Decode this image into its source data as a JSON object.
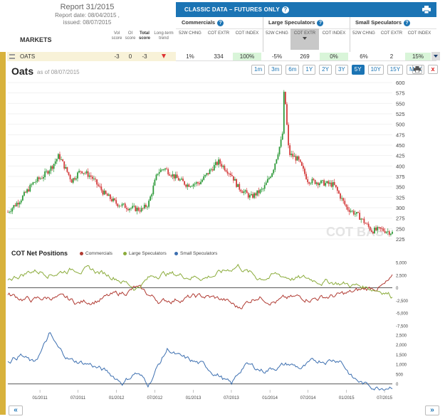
{
  "report": {
    "title": "Report 31/2015",
    "report_date": "Report date: 08/04/2015 ,",
    "issued": "issued: 08/07/2015"
  },
  "markets_label": "MARKETS",
  "score_headers": {
    "vol": "Vol score",
    "oi": "OI score",
    "total": "Total score",
    "trend": "Long-term trend"
  },
  "classic": {
    "title": "CLASSIC DATA – FUTURES ONLY",
    "help": "?"
  },
  "groups": [
    {
      "name": "Commercials",
      "help": "?"
    },
    {
      "name": "Large Speculators",
      "help": "?"
    },
    {
      "name": "Small Speculators",
      "help": "?"
    }
  ],
  "col_headers": [
    "52W CHNG",
    "COT EXTR",
    "COT INDEX",
    "52W CHNG",
    "COT EXTR",
    "COT INDEX",
    "52W CHNG",
    "COT EXTR",
    "COT INDEX"
  ],
  "row": {
    "name": "OATS",
    "vol": "-3",
    "oi": "0",
    "total": "-3",
    "values": [
      "1%",
      "334",
      "100%",
      "-5%",
      "269",
      "0%",
      "6%",
      "2",
      "15%"
    ]
  },
  "chart": {
    "title": "Oats",
    "as_of": "as of 08/07/2015",
    "ranges": [
      "1m",
      "3m",
      "6m",
      "1Y",
      "2Y",
      "3Y",
      "5Y",
      "10Y",
      "15Y",
      "MAX"
    ],
    "active_range": "5Y",
    "close_label": "x",
    "watermark": "COT BAS"
  },
  "cot_title": "COT Net Positions",
  "colors": {
    "commercials": "#b03a32",
    "large": "#8aab3a",
    "small": "#3c6fb0",
    "brand": "#1b74b4",
    "bull": "#2e9a3a",
    "bear": "#d43c3c"
  },
  "chart_data": {
    "price": {
      "type": "candlestick",
      "yticks": [
        "225",
        "250",
        "275",
        "300",
        "325",
        "350",
        "375",
        "400",
        "425",
        "450",
        "475",
        "500",
        "525",
        "550",
        "575",
        "600"
      ],
      "ylim": [
        225,
        600
      ],
      "start": "2010-08-01",
      "end": "2015-08-07",
      "anchors": [
        [
          "2010-08-01",
          290
        ],
        [
          "2010-10-01",
          320
        ],
        [
          "2010-12-01",
          360
        ],
        [
          "2011-01-15",
          375
        ],
        [
          "2011-03-01",
          400
        ],
        [
          "2011-04-01",
          425
        ],
        [
          "2011-06-01",
          365
        ],
        [
          "2011-07-15",
          390
        ],
        [
          "2011-09-01",
          375
        ],
        [
          "2011-11-01",
          335
        ],
        [
          "2012-01-01",
          310
        ],
        [
          "2012-03-01",
          300
        ],
        [
          "2012-05-01",
          295
        ],
        [
          "2012-06-01",
          310
        ],
        [
          "2012-07-15",
          385
        ],
        [
          "2012-08-15",
          395
        ],
        [
          "2012-10-01",
          375
        ],
        [
          "2012-12-01",
          355
        ],
        [
          "2013-02-01",
          360
        ],
        [
          "2013-04-01",
          395
        ],
        [
          "2013-05-01",
          410
        ],
        [
          "2013-07-01",
          380
        ],
        [
          "2013-08-01",
          350
        ],
        [
          "2013-10-01",
          325
        ],
        [
          "2013-12-01",
          345
        ],
        [
          "2014-01-15",
          390
        ],
        [
          "2014-03-01",
          470
        ],
        [
          "2014-03-10",
          590
        ],
        [
          "2014-04-01",
          430
        ],
        [
          "2014-05-15",
          415
        ],
        [
          "2014-07-01",
          365
        ],
        [
          "2014-09-01",
          360
        ],
        [
          "2014-11-01",
          355
        ],
        [
          "2015-01-01",
          300
        ],
        [
          "2015-03-01",
          280
        ],
        [
          "2015-05-01",
          245
        ],
        [
          "2015-06-15",
          248
        ],
        [
          "2015-08-07",
          240
        ]
      ]
    },
    "cot_upper": {
      "type": "line",
      "yticks": [
        "-7,500",
        "-5,000",
        "-2,500",
        "0",
        "2,500",
        "5,000"
      ],
      "ylim": [
        -7500,
        5000
      ],
      "series": [
        {
          "name": "Commercials",
          "anchors": [
            [
              "2010-08-01",
              -1500
            ],
            [
              "2010-12-01",
              -2500
            ],
            [
              "2011-03-01",
              -1800
            ],
            [
              "2011-07-01",
              -3000
            ],
            [
              "2011-11-01",
              -2000
            ],
            [
              "2012-01-01",
              -1500
            ],
            [
              "2012-04-01",
              0
            ],
            [
              "2012-06-01",
              -1500
            ],
            [
              "2012-08-01",
              -2700
            ],
            [
              "2012-11-01",
              -2000
            ],
            [
              "2013-03-01",
              -1800
            ],
            [
              "2013-06-01",
              -2500
            ],
            [
              "2013-08-01",
              -4000
            ],
            [
              "2013-11-01",
              -1500
            ],
            [
              "2014-02-01",
              -2500
            ],
            [
              "2014-06-01",
              -2000
            ],
            [
              "2014-09-01",
              -1800
            ],
            [
              "2014-12-01",
              -1500
            ],
            [
              "2015-02-01",
              -1000
            ],
            [
              "2015-05-01",
              0
            ],
            [
              "2015-07-01",
              500
            ],
            [
              "2015-08-07",
              1500
            ]
          ]
        },
        {
          "name": "Large Speculators",
          "anchors": [
            [
              "2010-08-01",
              1800
            ],
            [
              "2010-12-01",
              3500
            ],
            [
              "2011-03-01",
              3000
            ],
            [
              "2011-07-01",
              4000
            ],
            [
              "2011-11-01",
              2800
            ],
            [
              "2012-01-01",
              2200
            ],
            [
              "2012-04-01",
              0
            ],
            [
              "2012-06-01",
              1800
            ],
            [
              "2012-08-01",
              3000
            ],
            [
              "2012-11-01",
              2500
            ],
            [
              "2013-03-01",
              2200
            ],
            [
              "2013-06-01",
              3200
            ],
            [
              "2013-08-01",
              4500
            ],
            [
              "2013-11-01",
              2000
            ],
            [
              "2014-02-01",
              2500
            ],
            [
              "2014-06-01",
              1800
            ],
            [
              "2014-09-01",
              1500
            ],
            [
              "2014-12-01",
              1000
            ],
            [
              "2015-02-01",
              500
            ],
            [
              "2015-05-01",
              0
            ],
            [
              "2015-07-01",
              -500
            ],
            [
              "2015-08-07",
              -1500
            ]
          ]
        }
      ]
    },
    "cot_lower": {
      "type": "line",
      "yticks": [
        "0",
        "500",
        "1,000",
        "1,500",
        "2,000",
        "2,500"
      ],
      "ylim": [
        -300,
        2600
      ],
      "series": [
        {
          "name": "Small Speculators",
          "anchors": [
            [
              "2010-08-01",
              1200
            ],
            [
              "2010-10-01",
              1500
            ],
            [
              "2010-12-01",
              1000
            ],
            [
              "2011-01-15",
              1800
            ],
            [
              "2011-02-15",
              2500
            ],
            [
              "2011-04-01",
              1700
            ],
            [
              "2011-06-01",
              1200
            ],
            [
              "2011-09-01",
              1000
            ],
            [
              "2011-12-01",
              500
            ],
            [
              "2012-02-01",
              100
            ],
            [
              "2012-04-01",
              600
            ],
            [
              "2012-06-01",
              0
            ],
            [
              "2012-07-15",
              900
            ],
            [
              "2012-09-01",
              1800
            ],
            [
              "2012-11-01",
              1300
            ],
            [
              "2013-02-01",
              1000
            ],
            [
              "2013-05-01",
              500
            ],
            [
              "2013-07-01",
              -100
            ],
            [
              "2013-09-01",
              1000
            ],
            [
              "2013-12-01",
              700
            ],
            [
              "2014-02-01",
              900
            ],
            [
              "2014-04-01",
              1000
            ],
            [
              "2014-06-01",
              800
            ],
            [
              "2014-09-01",
              1200
            ],
            [
              "2014-12-01",
              1300
            ],
            [
              "2015-02-01",
              300
            ],
            [
              "2015-04-01",
              -50
            ],
            [
              "2015-06-01",
              -150
            ],
            [
              "2015-08-07",
              0
            ]
          ]
        }
      ]
    },
    "xticks": [
      "01/2011",
      "07/2011",
      "01/2012",
      "07/2012",
      "01/2013",
      "07/2013",
      "01/2014",
      "07/2014",
      "01/2015",
      "07/2015"
    ],
    "legend": [
      "Commercials",
      "Large Speculators",
      "Small Speculators"
    ]
  }
}
